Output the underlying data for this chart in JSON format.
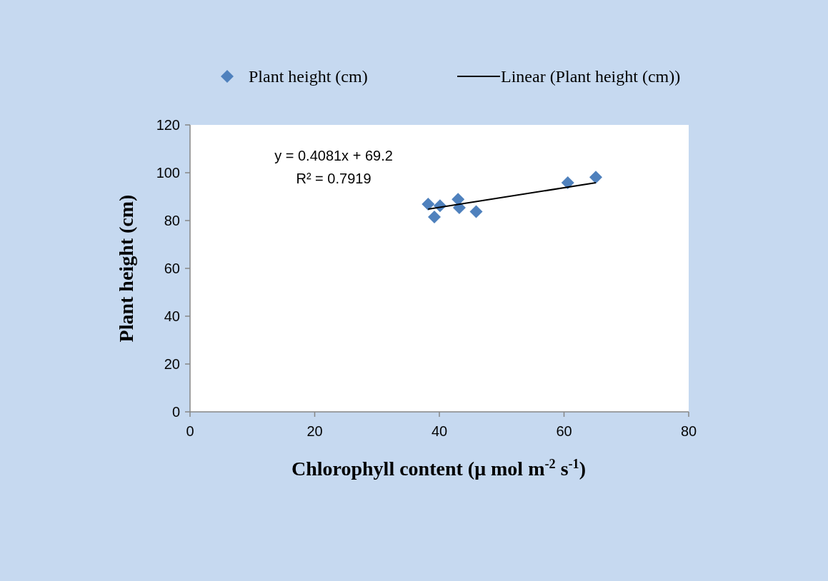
{
  "chart_data": {
    "type": "scatter",
    "xlabel": "Chlorophyll content (μ mol m$^{-2}$ s$^{-1}$)",
    "ylabel": "Plant height (cm)",
    "xlim": [
      0,
      80
    ],
    "xticks": [
      0,
      20,
      40,
      60,
      80
    ],
    "ylim": [
      0,
      120
    ],
    "yticks": [
      0,
      20,
      40,
      60,
      80,
      100,
      120
    ],
    "grid": false,
    "legend": "top",
    "annotations": [
      "y = 0.4081x + 69.2",
      "R² = 0.7919"
    ],
    "series": [
      {
        "name": "Plant height (cm)",
        "marker": "diamond",
        "color": "#4f81bd",
        "x": [
          38.2,
          40.1,
          39.2,
          43.0,
          43.2,
          45.9,
          60.6,
          65.1
        ],
        "values": [
          86.9,
          86.2,
          81.5,
          88.9,
          85.4,
          83.7,
          95.8,
          98.1
        ]
      },
      {
        "name": "Linear (Plant height (cm))",
        "type": "line",
        "color": "#000000",
        "line_style": "solid",
        "x": [
          38.2,
          65.1
        ],
        "values": [
          84.8,
          95.8
        ]
      }
    ]
  }
}
